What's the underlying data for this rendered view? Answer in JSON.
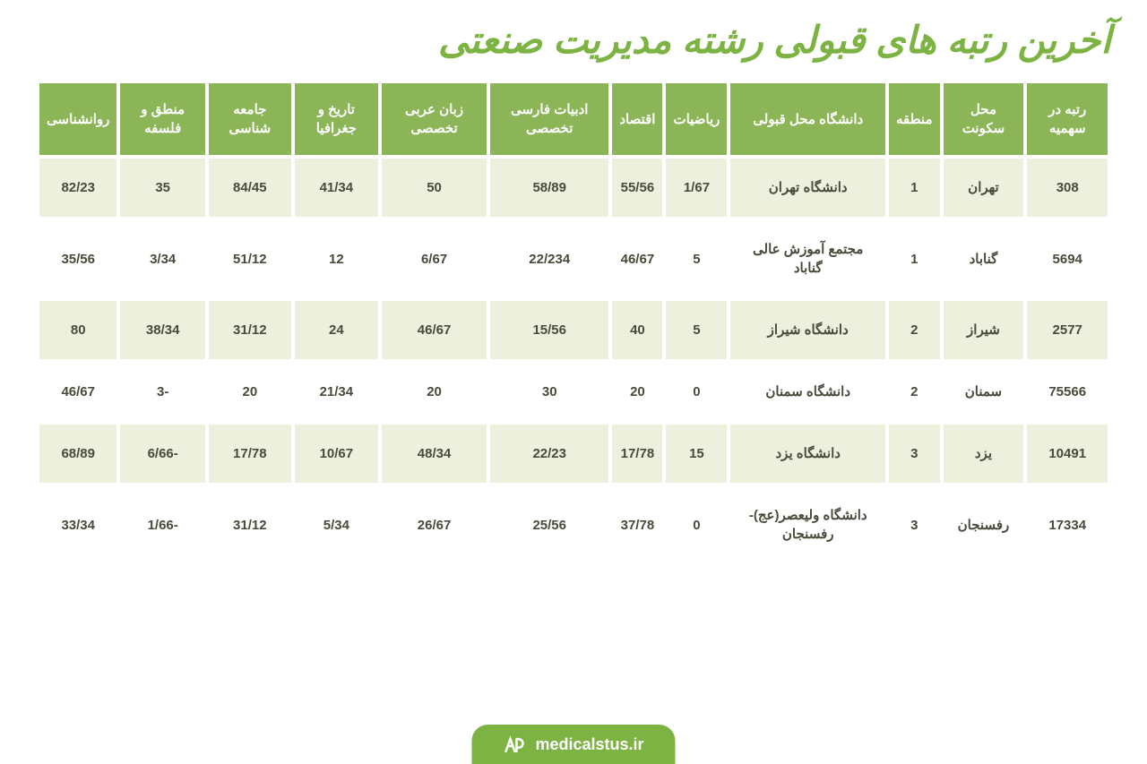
{
  "title": "آخرین رتبه های قبولی رشته مدیریت صنعتی",
  "columns": [
    "رتبه در سهمیه",
    "محل سکونت",
    "منطقه",
    "دانشگاه محل قبولی",
    "ریاضیات",
    "اقتصاد",
    "ادبیات فارسی تخصصی",
    "زبان عربی تخصصی",
    "تاریخ و جغرافیا",
    "جامعه شناسی",
    "منطق و فلسفه",
    "روانشناسی"
  ],
  "rows": [
    [
      "308",
      "تهران",
      "1",
      "دانشگاه تهران",
      "1/67",
      "55/56",
      "58/89",
      "50",
      "41/34",
      "84/45",
      "35",
      "82/23"
    ],
    [
      "5694",
      "گناباد",
      "1",
      "مجتمع آموزش عالی گناباد",
      "5",
      "46/67",
      "22/234",
      "6/67",
      "12",
      "51/12",
      "3/34",
      "35/56"
    ],
    [
      "2577",
      "شیراز",
      "2",
      "دانشگاه شیراز",
      "5",
      "40",
      "15/56",
      "46/67",
      "24",
      "31/12",
      "38/34",
      "80"
    ],
    [
      "75566",
      "سمنان",
      "2",
      "دانشگاه سمنان",
      "0",
      "20",
      "30",
      "20",
      "21/34",
      "20",
      "-3",
      "46/67"
    ],
    [
      "10491",
      "یزد",
      "3",
      "دانشگاه یزد",
      "15",
      "17/78",
      "22/23",
      "48/34",
      "10/67",
      "17/78",
      "-6/66",
      "68/89"
    ],
    [
      "17334",
      "رفسنجان",
      "3",
      "دانشگاه ولیعصر(عج)-رفسنجان",
      "0",
      "37/78",
      "25/56",
      "26/67",
      "5/34",
      "31/12",
      "-1/66",
      "33/34"
    ]
  ],
  "footer": "medicalstus.ir",
  "styling": {
    "title_color": "#7cb342",
    "title_fontsize": 42,
    "header_bg": "#8bb556",
    "header_text_color": "#ffffff",
    "header_fontsize": 15,
    "row_odd_bg": "#eef0de",
    "row_even_bg": "#ffffff",
    "cell_text_color": "#4a4a3a",
    "cell_fontsize": 15,
    "footer_bg": "#7cb342",
    "footer_text_color": "#ffffff",
    "footer_fontsize": 18,
    "border_spacing": 4
  }
}
